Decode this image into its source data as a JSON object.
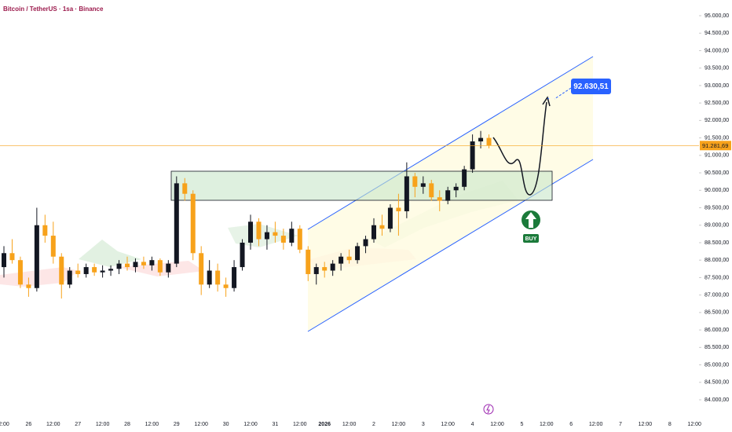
{
  "chart_data": {
    "type": "candlestick",
    "title": "Bitcoin / TetherUS · 1sa · Binance",
    "up_color": "#131722",
    "down_color": "#f7a21b",
    "ylim": [
      84000,
      95000
    ],
    "yticks": [
      {
        "value": 84000,
        "label": "84.000,00"
      },
      {
        "value": 84500,
        "label": "84.500,00"
      },
      {
        "value": 85000,
        "label": "85.000,00"
      },
      {
        "value": 85500,
        "label": "85.500,00"
      },
      {
        "value": 86000,
        "label": "86.000,00"
      },
      {
        "value": 86500,
        "label": "86.500,00"
      },
      {
        "value": 87000,
        "label": "87.000,00"
      },
      {
        "value": 87500,
        "label": "87.500,00"
      },
      {
        "value": 88000,
        "label": "88.000,00"
      },
      {
        "value": 88500,
        "label": "88.500,00"
      },
      {
        "value": 89000,
        "label": "89.000,00"
      },
      {
        "value": 89500,
        "label": "89.500,00"
      },
      {
        "value": 90000,
        "label": "90.000,00"
      },
      {
        "value": 90500,
        "label": "90.500,00"
      },
      {
        "value": 91000,
        "label": "91.000,00"
      },
      {
        "value": 91500,
        "label": "91.500,00"
      },
      {
        "value": 92000,
        "label": "92.000,00"
      },
      {
        "value": 92500,
        "label": "92.500,00"
      },
      {
        "value": 93000,
        "label": "93.000,00"
      },
      {
        "value": 93500,
        "label": "93.500,00"
      },
      {
        "value": 94000,
        "label": "94.000,00"
      },
      {
        "value": 94500,
        "label": "94.500,00"
      },
      {
        "value": 95000,
        "label": "95.000,00"
      }
    ],
    "xticks": [
      "2:00",
      "26",
      "12:00",
      "27",
      "12:00",
      "28",
      "12:00",
      "29",
      "12:00",
      "30",
      "12:00",
      "31",
      "12:00",
      "2026",
      "12:00",
      "2",
      "12:00",
      "3",
      "12:00",
      "4",
      "12:00",
      "5",
      "12:00",
      "6",
      "12:00",
      "7",
      "12:00",
      "8",
      "12:00"
    ],
    "candles": [
      [
        87800,
        88400,
        87500,
        88200
      ],
      [
        88200,
        88600,
        87900,
        88000
      ],
      [
        88000,
        88100,
        87200,
        87300
      ],
      [
        87300,
        87500,
        86950,
        87200
      ],
      [
        87200,
        89500,
        87100,
        89000
      ],
      [
        89000,
        89300,
        88500,
        88700
      ],
      [
        88700,
        89100,
        87900,
        88100
      ],
      [
        88100,
        88200,
        86900,
        87300
      ],
      [
        87300,
        87800,
        87200,
        87700
      ],
      [
        87700,
        87900,
        87500,
        87600
      ],
      [
        87600,
        87900,
        87500,
        87800
      ],
      [
        87800,
        87900,
        87550,
        87650
      ],
      [
        87650,
        87850,
        87500,
        87700
      ],
      [
        87700,
        87850,
        87550,
        87750
      ],
      [
        87750,
        88000,
        87600,
        87900
      ],
      [
        87900,
        88100,
        87700,
        87800
      ],
      [
        87800,
        88050,
        87650,
        87950
      ],
      [
        87950,
        88100,
        87750,
        87850
      ],
      [
        87850,
        88100,
        87700,
        88000
      ],
      [
        88000,
        88050,
        87550,
        87650
      ],
      [
        87650,
        88000,
        87500,
        87900
      ],
      [
        87900,
        90400,
        87800,
        90200
      ],
      [
        90200,
        90350,
        89700,
        89900
      ],
      [
        89900,
        90000,
        88000,
        88200
      ],
      [
        88200,
        88400,
        87000,
        87300
      ],
      [
        87300,
        88000,
        87200,
        87700
      ],
      [
        87700,
        87900,
        87100,
        87300
      ],
      [
        87300,
        87500,
        86950,
        87200
      ],
      [
        87200,
        88000,
        87100,
        87800
      ],
      [
        87800,
        88600,
        87700,
        88500
      ],
      [
        88500,
        89300,
        88300,
        89100
      ],
      [
        89100,
        89200,
        88400,
        88600
      ],
      [
        88600,
        89000,
        88300,
        88800
      ],
      [
        88800,
        89100,
        88500,
        88700
      ],
      [
        88700,
        88900,
        88300,
        88500
      ],
      [
        88500,
        89100,
        88400,
        88900
      ],
      [
        88900,
        89000,
        88200,
        88300
      ],
      [
        88300,
        88400,
        87400,
        87600
      ],
      [
        87600,
        87900,
        87300,
        87800
      ],
      [
        87800,
        87950,
        87500,
        87700
      ],
      [
        87700,
        88000,
        87550,
        87900
      ],
      [
        87900,
        88200,
        87700,
        88100
      ],
      [
        88100,
        88300,
        87900,
        88000
      ],
      [
        88000,
        88500,
        87900,
        88400
      ],
      [
        88400,
        88700,
        88200,
        88600
      ],
      [
        88600,
        89200,
        88500,
        89000
      ],
      [
        89000,
        89300,
        88700,
        88900
      ],
      [
        88900,
        89600,
        88800,
        89500
      ],
      [
        89500,
        89900,
        88700,
        89400
      ],
      [
        89400,
        90800,
        89200,
        90400
      ],
      [
        90400,
        90500,
        89800,
        90100
      ],
      [
        90100,
        90400,
        89900,
        90200
      ],
      [
        90200,
        90300,
        89700,
        89800
      ],
      [
        89800,
        90000,
        89400,
        89700
      ],
      [
        89700,
        90100,
        89600,
        90000
      ],
      [
        90000,
        90200,
        89800,
        90100
      ],
      [
        90100,
        90700,
        90000,
        90600
      ],
      [
        90600,
        91600,
        90500,
        91400
      ],
      [
        91400,
        91700,
        91200,
        91500
      ],
      [
        91500,
        91600,
        91200,
        91281.69
      ]
    ],
    "last_price": {
      "value": 91281.69,
      "label": "91.281,69"
    },
    "target": {
      "value": 92630.51,
      "label": "92.630,51"
    },
    "signal": "BUY"
  }
}
